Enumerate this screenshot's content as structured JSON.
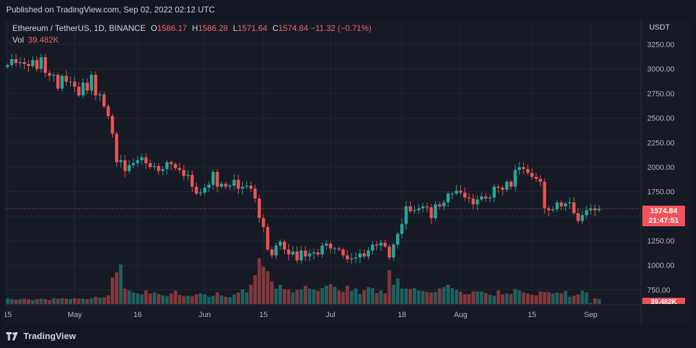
{
  "header": {
    "published": "Published on TradingView.com, Sep 02, 2022 02:12 UTC"
  },
  "legend": {
    "symbol": "Ethereum / TetherUS, 1D, BINANCE",
    "open_label": "O",
    "open": "1586.17",
    "high_label": "H",
    "high": "1586.28",
    "low_label": "L",
    "low": "1571.64",
    "close_label": "C",
    "close": "1574.84",
    "change": "−11.32 (−0.71%)",
    "volume_label": "Vol",
    "volume": "39.482K"
  },
  "axis": {
    "currency": "USDT",
    "last_price": "1574.84",
    "countdown": "21:47:51",
    "last_volume": "39.482K"
  },
  "footer": {
    "brand": "TradingView"
  },
  "colors": {
    "up": "#26a69a",
    "down": "#ef5350",
    "background": "#131722",
    "grid": "#1f2430"
  },
  "chart_data": {
    "type": "candlestick",
    "title": "Ethereum / TetherUS, 1D, BINANCE",
    "ylabel": "USDT",
    "ylim": [
      703,
      3303
    ],
    "y_ticks": [
      "3250.00",
      "3000.00",
      "2750.00",
      "2500.00",
      "2250.00",
      "2000.00",
      "1750.00",
      "1500.00",
      "1250.00",
      "1000.00",
      "750.00"
    ],
    "x_ticks": [
      "15",
      "May",
      "16",
      "Jun",
      "15",
      "Jul",
      "18",
      "Aug",
      "15",
      "Sep"
    ],
    "x_tick_day_index": [
      0,
      16,
      31,
      47,
      61,
      77,
      94,
      108,
      125,
      139
    ],
    "series_start_day": "2022-04-15",
    "candles_close": [
      3040,
      3100,
      3060,
      3070,
      3050,
      3030,
      3090,
      3000,
      3120,
      2960,
      2930,
      2940,
      2800,
      2930,
      2870,
      2870,
      2820,
      2730,
      2860,
      2780,
      2940,
      2730,
      2740,
      2620,
      2520,
      2340,
      2050,
      2070,
      1960,
      2020,
      2040,
      2070,
      2100,
      2040,
      2000,
      2010,
      1960,
      1980,
      2050,
      2030,
      1990,
      1970,
      1910,
      1920,
      1800,
      1730,
      1740,
      1790,
      1820,
      1950,
      1800,
      1830,
      1800,
      1810,
      1870,
      1780,
      1800,
      1810,
      1780,
      1680,
      1480,
      1390,
      1160,
      1100,
      1200,
      1240,
      1160,
      1110,
      1140,
      1050,
      1150,
      1090,
      1120,
      1130,
      1110,
      1200,
      1220,
      1170,
      1170,
      1160,
      1100,
      1060,
      1070,
      1080,
      1120,
      1090,
      1150,
      1210,
      1200,
      1230,
      1190,
      1080,
      1210,
      1320,
      1420,
      1600,
      1550,
      1560,
      1580,
      1600,
      1590,
      1480,
      1620,
      1600,
      1640,
      1730,
      1730,
      1760,
      1740,
      1690,
      1680,
      1620,
      1670,
      1700,
      1680,
      1690,
      1800,
      1790,
      1770,
      1850,
      1800,
      1970,
      2000,
      1980,
      1940,
      1900,
      1880,
      1850,
      1580,
      1560,
      1570,
      1640,
      1600,
      1630,
      1640,
      1530,
      1450,
      1510,
      1560,
      1580,
      1560,
      1575
    ],
    "volume_max": 100,
    "volume_pattern": [
      12,
      10,
      9,
      10,
      11,
      10,
      8,
      10,
      11,
      10,
      8,
      12,
      11,
      12,
      11,
      10,
      12,
      11,
      11,
      10,
      12,
      15,
      13,
      14,
      18,
      55,
      66,
      82,
      32,
      28,
      24,
      22,
      20,
      28,
      22,
      24,
      21,
      18,
      16,
      22,
      28,
      19,
      16,
      17,
      16,
      20,
      22,
      20,
      15,
      17,
      24,
      18,
      15,
      14,
      20,
      24,
      30,
      24,
      40,
      60,
      95,
      78,
      68,
      47,
      32,
      40,
      31,
      30,
      24,
      29,
      30,
      38,
      32,
      30,
      27,
      33,
      38,
      41,
      36,
      28,
      25,
      38,
      27,
      32,
      21,
      29,
      35,
      33,
      23,
      28,
      22,
      70,
      40,
      53,
      32,
      32,
      31,
      33,
      28,
      27,
      25,
      24,
      25,
      32,
      35,
      40,
      33,
      29,
      25,
      20,
      20,
      26,
      26,
      26,
      23,
      19,
      17,
      28,
      20,
      22,
      21,
      31,
      28,
      24,
      22,
      19,
      18,
      26,
      25,
      25,
      22,
      24,
      22,
      27,
      15,
      17,
      20,
      28,
      24,
      2
    ],
    "volume_legend": "39.482K"
  }
}
